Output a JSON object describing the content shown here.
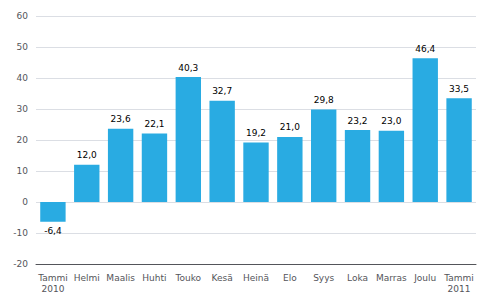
{
  "chart_data": {
    "type": "bar",
    "categories": [
      "Tammi\n2010",
      "Helmi",
      "Maalis",
      "Huhti",
      "Touko",
      "Kesä",
      "Heinä",
      "Elo",
      "Syys",
      "Loka",
      "Marras",
      "Joulu",
      "Tammi\n2011"
    ],
    "values": [
      -6.4,
      12.0,
      23.6,
      22.1,
      40.3,
      32.7,
      19.2,
      21.0,
      29.8,
      23.2,
      23.0,
      46.4,
      33.5
    ],
    "value_labels": [
      "-6,4",
      "12,0",
      "23,6",
      "22,1",
      "40,3",
      "32,7",
      "19,2",
      "21,0",
      "29,8",
      "23,2",
      "23,0",
      "46,4",
      "33,5"
    ],
    "color": "#29abe2",
    "ylim": [
      -20,
      60
    ],
    "yticks": [
      -20,
      -10,
      0,
      10,
      20,
      30,
      40,
      50,
      60
    ],
    "grid": true,
    "data_labels": true
  }
}
